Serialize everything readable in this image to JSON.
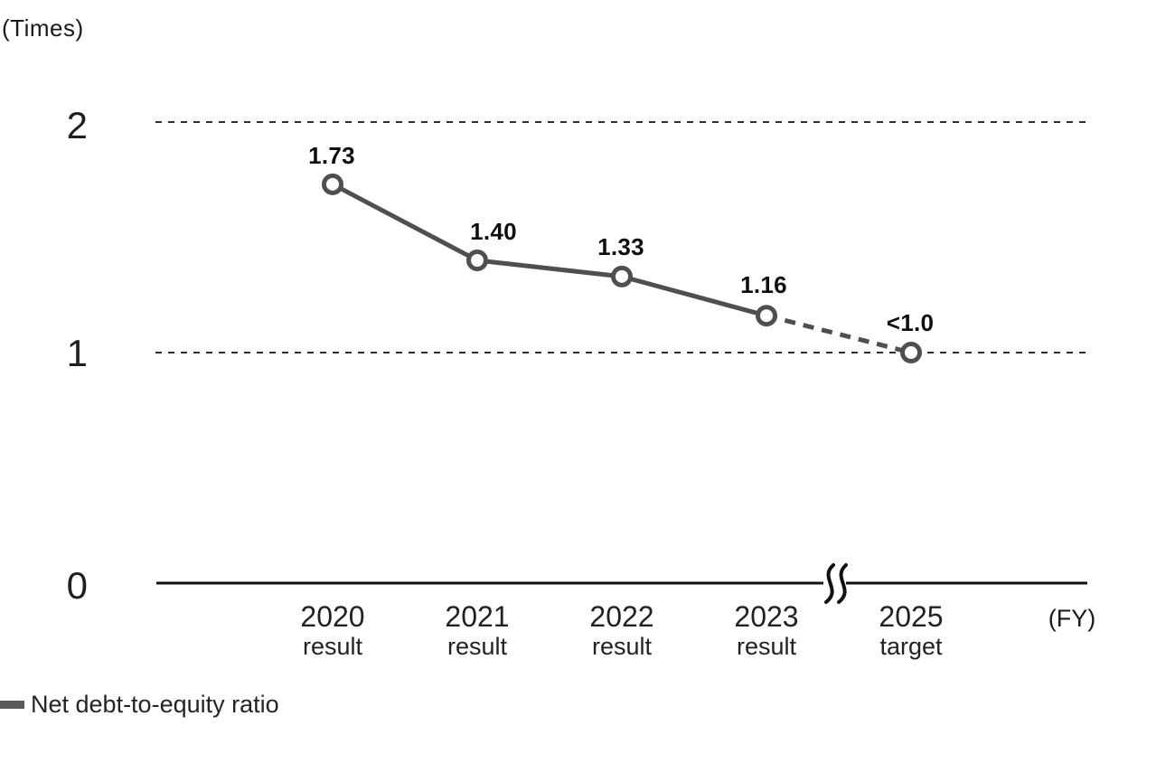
{
  "figure": {
    "y_axis_unit": "(Times)",
    "x_axis_unit": "(FY)"
  },
  "legend": {
    "label": "Net debt-to-equity ratio"
  },
  "colors": {
    "series": "#4f4f4f",
    "marker_fill": "#ffffff",
    "axis": "#111111",
    "gridline": "#2e2e2e",
    "text": "#1a1a1a",
    "legend_swatch": "#5a5a5a"
  },
  "chart_data": {
    "type": "line",
    "categories": [
      "2020",
      "2021",
      "2022",
      "2023",
      "2025"
    ],
    "category_sublabels": [
      "result",
      "result",
      "result",
      "result",
      "target"
    ],
    "series": [
      {
        "name": "Net debt-to-equity ratio",
        "values": [
          1.73,
          1.4,
          1.33,
          1.16,
          1.0
        ],
        "value_labels": [
          "1.73",
          "1.40",
          "1.33",
          "1.16",
          "<1.0"
        ],
        "solid_through_index": 3,
        "dashed_segment_note": "segment from 2023 result to 2025 target is dashed (projection)"
      }
    ],
    "xlabel_unit": "(FY)",
    "ylabel_unit": "(Times)",
    "y_ticks": [
      2,
      1,
      0
    ],
    "y_tick_labels": [
      "2",
      "1",
      "0"
    ],
    "ylim": [
      0,
      2.3
    ],
    "gridlines": {
      "style": "dashed",
      "at": [
        2,
        1
      ]
    },
    "axis_break": {
      "between": [
        "2023",
        "2025"
      ]
    },
    "legend_position": "bottom-left",
    "marker": "open-circle"
  }
}
